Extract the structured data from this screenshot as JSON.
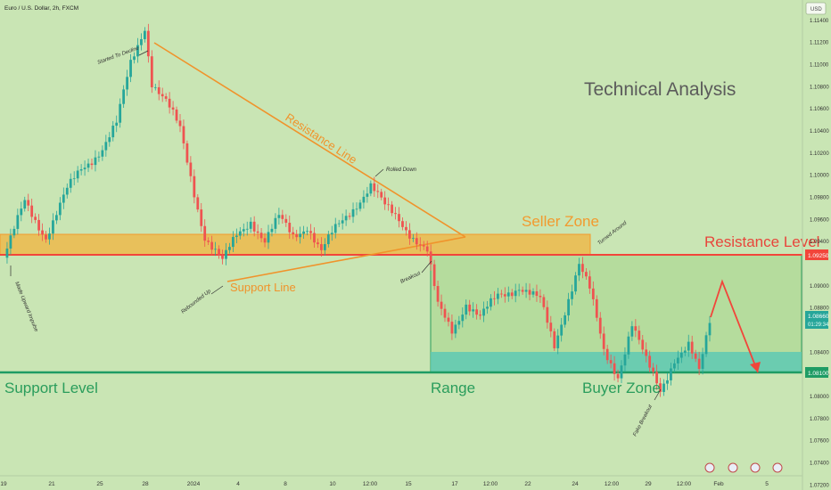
{
  "header": {
    "symbol_title": "Euro / U.S. Dollar, 2h, FXCM",
    "currency_badge": "USD"
  },
  "colors": {
    "background": "#c9e5b4",
    "bull": "#26a69a",
    "bear": "#ef5350",
    "seller_zone": "#f2b33d",
    "buyer_zone": "#5ec9b4",
    "range_fill": "#b5dc9d",
    "support_line": "#1e9c64",
    "resistance_line": "#f2453a",
    "trend_line": "#f0932b",
    "title_text": "#5b5b5b"
  },
  "annotations": {
    "title": "Technical Analysis",
    "seller_zone": "Seller Zone",
    "resistance_level": "Resistance Level",
    "support_level": "Support Level",
    "range": "Range",
    "buyer_zone": "Buyer Zone",
    "resistance_line": "Resistance Line",
    "support_line": "Support Line",
    "started_to_decline": "Started To Decline",
    "rolled_down": "Rolled Down",
    "turned_around": "Turned Around",
    "breakout": "Breakout",
    "rebounded_up": "Rebounded Up",
    "made_upward_impulse": "Made Upward Impulse",
    "fake_breakout": "Fake Breakout"
  },
  "price_tags": {
    "resistance": "1.09250",
    "current": "1.08660",
    "countdown": "01:29:34",
    "support": "1.08100"
  },
  "chart_data": {
    "type": "candlestick",
    "title": "Euro / U.S. Dollar, 2h, FXCM",
    "y_axis": {
      "ylim": [
        1.0715,
        1.1158
      ],
      "ticks": [
        "1.11400",
        "1.11200",
        "1.11000",
        "1.10800",
        "1.10600",
        "1.10400",
        "1.10200",
        "1.10000",
        "1.09800",
        "1.09600",
        "1.09400",
        "1.09000",
        "1.08800",
        "1.08400",
        "1.08200",
        "1.08000",
        "1.07800",
        "1.07600",
        "1.07400",
        "1.07200"
      ]
    },
    "x_axis": {
      "ticks": [
        "19",
        "21",
        "25",
        "28",
        "2024",
        "4",
        "8",
        "10",
        "12:00",
        "15",
        "17",
        "12:00",
        "22",
        "24",
        "12:00",
        "29",
        "12:00",
        "Feb",
        "5"
      ]
    },
    "levels": {
      "seller_zone": [
        1.0925,
        1.0945
      ],
      "resistance_level": 1.0925,
      "buyer_zone": [
        1.081,
        1.0828
      ],
      "support_level": 1.081
    },
    "path_waypoints": [
      {
        "bar": 0,
        "price": 1.0925
      },
      {
        "bar": 2,
        "price": 1.094
      },
      {
        "bar": 6,
        "price": 1.0975
      },
      {
        "bar": 12,
        "price": 1.0945
      },
      {
        "bar": 18,
        "price": 1.0985
      },
      {
        "bar": 22,
        "price": 1.1005
      },
      {
        "bar": 28,
        "price": 1.1025
      },
      {
        "bar": 32,
        "price": 1.1045
      },
      {
        "bar": 36,
        "price": 1.11
      },
      {
        "bar": 40,
        "price": 1.1135
      },
      {
        "bar": 42,
        "price": 1.1085
      },
      {
        "bar": 46,
        "price": 1.1065
      },
      {
        "bar": 50,
        "price": 1.104
      },
      {
        "bar": 54,
        "price": 1.0985
      },
      {
        "bar": 57,
        "price": 1.0945
      },
      {
        "bar": 62,
        "price": 1.092
      },
      {
        "bar": 66,
        "price": 1.0945
      },
      {
        "bar": 70,
        "price": 1.096
      },
      {
        "bar": 74,
        "price": 1.094
      },
      {
        "bar": 78,
        "price": 1.096
      },
      {
        "bar": 82,
        "price": 1.0945
      },
      {
        "bar": 86,
        "price": 1.0955
      },
      {
        "bar": 90,
        "price": 1.093
      },
      {
        "bar": 94,
        "price": 1.095
      },
      {
        "bar": 100,
        "price": 1.0975
      },
      {
        "bar": 104,
        "price": 1.099
      },
      {
        "bar": 108,
        "price": 1.097
      },
      {
        "bar": 112,
        "price": 1.096
      },
      {
        "bar": 116,
        "price": 1.0945
      },
      {
        "bar": 120,
        "price": 1.093
      },
      {
        "bar": 123,
        "price": 1.088
      },
      {
        "bar": 127,
        "price": 1.086
      },
      {
        "bar": 131,
        "price": 1.0885
      },
      {
        "bar": 135,
        "price": 1.087
      },
      {
        "bar": 140,
        "price": 1.089
      },
      {
        "bar": 146,
        "price": 1.09
      },
      {
        "bar": 152,
        "price": 1.0885
      },
      {
        "bar": 156,
        "price": 1.0845
      },
      {
        "bar": 160,
        "price": 1.089
      },
      {
        "bar": 163,
        "price": 1.092
      },
      {
        "bar": 166,
        "price": 1.0895
      },
      {
        "bar": 170,
        "price": 1.084
      },
      {
        "bar": 174,
        "price": 1.082
      },
      {
        "bar": 178,
        "price": 1.0865
      },
      {
        "bar": 182,
        "price": 1.083
      },
      {
        "bar": 186,
        "price": 1.0805
      },
      {
        "bar": 190,
        "price": 1.0835
      },
      {
        "bar": 194,
        "price": 1.0845
      },
      {
        "bar": 197,
        "price": 1.082
      },
      {
        "bar": 200,
        "price": 1.0866
      }
    ],
    "projection": [
      1.0866,
      1.09,
      1.081
    ]
  }
}
